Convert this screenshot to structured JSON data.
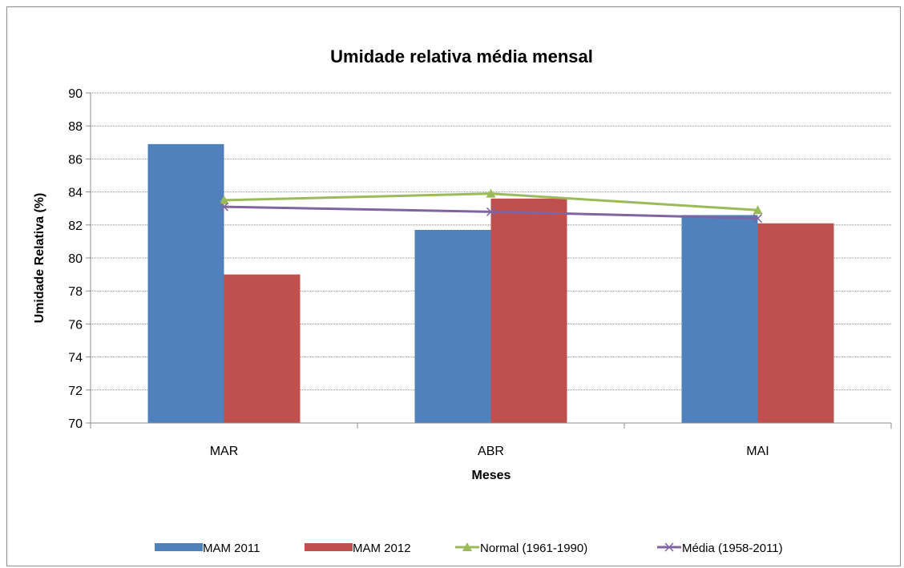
{
  "chart_data": {
    "type": "bar",
    "title": "Umidade relativa  média mensal",
    "xlabel": "Meses",
    "ylabel": "Umidade Relativa (%)",
    "categories": [
      "MAR",
      "ABR",
      "MAI"
    ],
    "ylim": [
      70,
      90
    ],
    "yticks": [
      70,
      72,
      74,
      76,
      78,
      80,
      82,
      84,
      86,
      88,
      90
    ],
    "grid": true,
    "legend_position": "bottom",
    "series": [
      {
        "name": "MAM 2011",
        "type": "bar",
        "color": "#4f81bd",
        "values": [
          86.9,
          81.7,
          82.6
        ]
      },
      {
        "name": "MAM 2012",
        "type": "bar",
        "color": "#c0504d",
        "values": [
          79.0,
          83.6,
          82.1
        ]
      },
      {
        "name": "Normal (1961-1990)",
        "type": "line",
        "marker": "triangle",
        "color": "#9bbb59",
        "values": [
          83.5,
          83.9,
          82.9
        ]
      },
      {
        "name": "Média (1958-2011)",
        "type": "line",
        "marker": "x",
        "color": "#8064a2",
        "values": [
          83.1,
          82.8,
          82.4
        ]
      }
    ]
  }
}
